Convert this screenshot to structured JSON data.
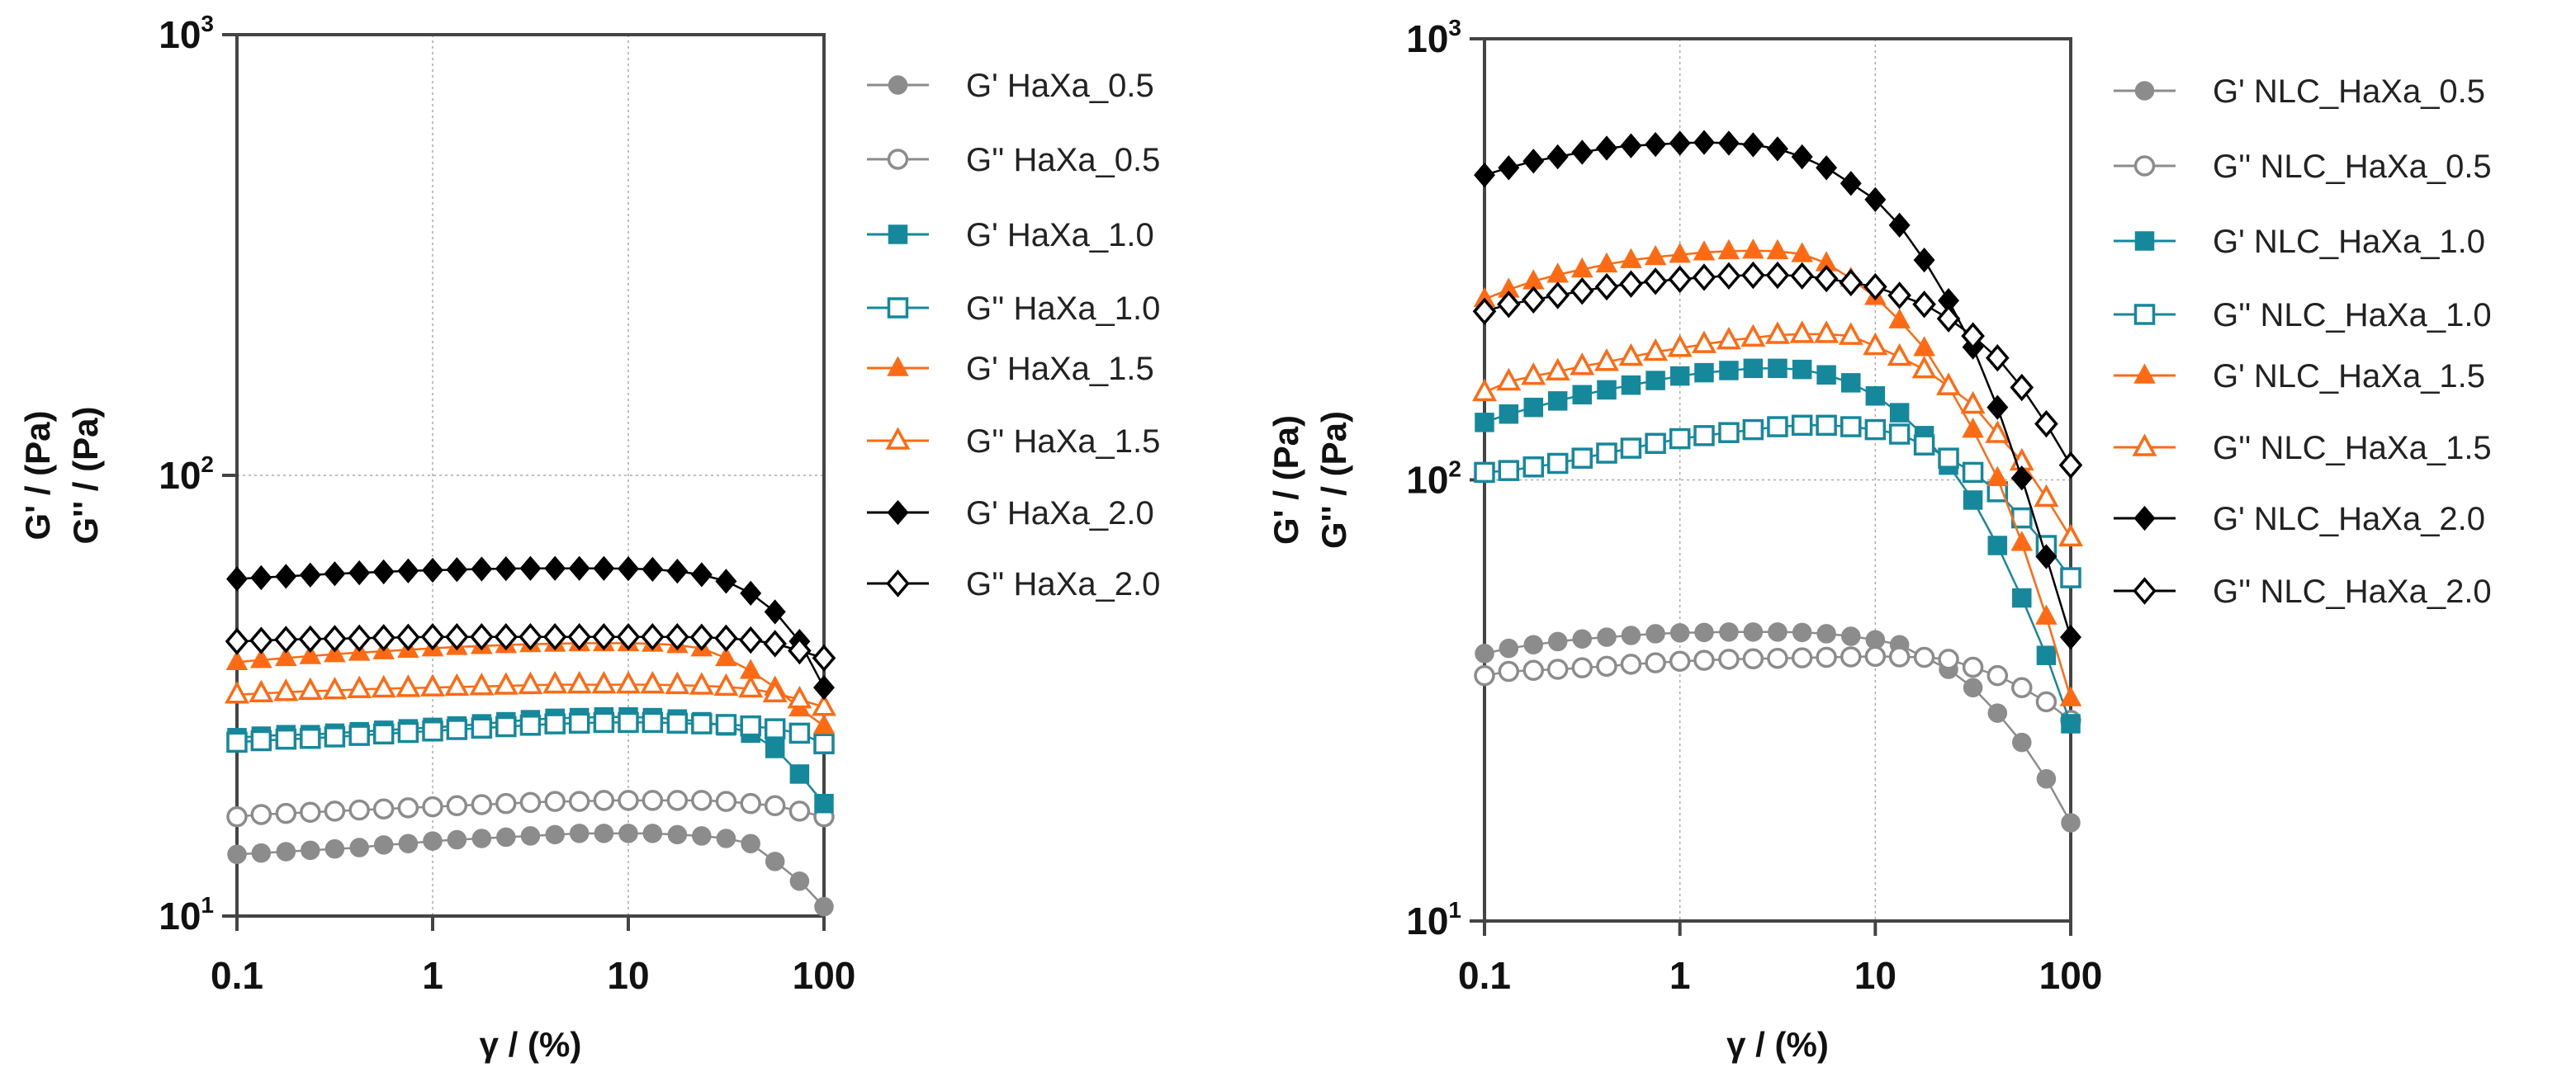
{
  "chart_data": [
    {
      "type": "line",
      "xscale": "log",
      "yscale": "log",
      "xlabel": "γ / (%)",
      "ylabel_lines": [
        "G' / (Pa)",
        "G'' / (Pa)"
      ],
      "xlim": [
        0.1,
        100
      ],
      "ylim": [
        10,
        1000
      ],
      "xticks": [
        "0.1",
        "1",
        "10",
        "100"
      ],
      "yticks": [
        {
          "base": "10",
          "exp": "1"
        },
        {
          "base": "10",
          "exp": "2"
        },
        {
          "base": "10",
          "exp": "3"
        }
      ],
      "grid": true,
      "legend_position": "right",
      "x": [
        0.1,
        0.133,
        0.178,
        0.237,
        0.316,
        0.422,
        0.562,
        0.75,
        1,
        1.33,
        1.78,
        2.37,
        3.16,
        4.22,
        5.62,
        7.5,
        10,
        13.3,
        17.8,
        23.7,
        31.6,
        42.2,
        56.2,
        75,
        100
      ],
      "series": [
        {
          "name": "G' HaXa_0.5",
          "color": "#8c8c8c",
          "marker": "circle",
          "filled": true,
          "values": [
            13.8,
            13.9,
            14.0,
            14.1,
            14.2,
            14.3,
            14.5,
            14.6,
            14.8,
            14.9,
            15.0,
            15.1,
            15.2,
            15.3,
            15.4,
            15.4,
            15.4,
            15.4,
            15.3,
            15.2,
            15.0,
            14.6,
            13.3,
            12.0,
            10.5
          ]
        },
        {
          "name": "G'' HaXa_0.5",
          "color": "#8c8c8c",
          "marker": "circle",
          "filled": false,
          "values": [
            16.8,
            17.0,
            17.1,
            17.2,
            17.3,
            17.4,
            17.5,
            17.6,
            17.7,
            17.8,
            17.9,
            18.0,
            18.1,
            18.2,
            18.2,
            18.3,
            18.3,
            18.3,
            18.3,
            18.3,
            18.2,
            18.0,
            17.8,
            17.3,
            16.8
          ]
        },
        {
          "name": "G' HaXa_1.0",
          "color": "#16889c",
          "marker": "square",
          "filled": true,
          "values": [
            25.4,
            25.6,
            25.8,
            25.8,
            26.0,
            26.2,
            26.4,
            26.6,
            26.8,
            27.0,
            27.3,
            27.6,
            27.9,
            28.1,
            28.2,
            28.3,
            28.3,
            28.2,
            28.0,
            27.6,
            27.0,
            26.0,
            24.0,
            21.0,
            18.0
          ]
        },
        {
          "name": "G'' HaXa_1.0",
          "color": "#16889c",
          "marker": "square",
          "filled": false,
          "values": [
            24.8,
            25.0,
            25.2,
            25.3,
            25.5,
            25.7,
            25.9,
            26.1,
            26.3,
            26.5,
            26.7,
            26.9,
            27.1,
            27.3,
            27.4,
            27.5,
            27.5,
            27.5,
            27.4,
            27.3,
            27.2,
            27.0,
            26.6,
            26.0,
            24.6
          ]
        },
        {
          "name": "G' HaXa_1.5",
          "color": "#ff6a13",
          "marker": "triangle",
          "filled": true,
          "values": [
            37.7,
            38.1,
            38.5,
            38.9,
            39.3,
            39.6,
            39.9,
            40.2,
            40.5,
            40.8,
            41.0,
            41.2,
            41.4,
            41.5,
            41.6,
            41.6,
            41.6,
            41.5,
            41.2,
            40.5,
            38.5,
            36.0,
            33.0,
            29.6,
            27.0
          ]
        },
        {
          "name": "G'' HaXa_1.5",
          "color": "#ff6a13",
          "marker": "triangle",
          "filled": false,
          "values": [
            31.8,
            32.0,
            32.2,
            32.4,
            32.5,
            32.7,
            32.8,
            32.9,
            33.0,
            33.1,
            33.2,
            33.3,
            33.4,
            33.5,
            33.5,
            33.5,
            33.5,
            33.5,
            33.4,
            33.3,
            33.1,
            32.8,
            32.0,
            31.0,
            29.8
          ]
        },
        {
          "name": "G' HaXa_2.0",
          "color": "#000000",
          "marker": "diamond",
          "filled": true,
          "values": [
            58.2,
            58.6,
            59.0,
            59.4,
            59.8,
            60.1,
            60.4,
            60.7,
            60.9,
            61.1,
            61.3,
            61.4,
            61.5,
            61.5,
            61.5,
            61.5,
            61.4,
            61.2,
            60.6,
            59.5,
            57.5,
            54.0,
            49.0,
            42.0,
            33.0
          ]
        },
        {
          "name": "G'' HaXa_2.0",
          "color": "#000000",
          "marker": "diamond",
          "filled": false,
          "values": [
            42.0,
            42.2,
            42.4,
            42.5,
            42.6,
            42.7,
            42.8,
            42.9,
            43,
            43,
            43,
            43,
            43,
            43,
            43,
            43,
            43,
            43,
            43,
            42.9,
            42.7,
            42.3,
            41.5,
            40.0,
            38.5
          ]
        }
      ]
    },
    {
      "type": "line",
      "xscale": "log",
      "yscale": "log",
      "xlabel": "γ / (%)",
      "ylabel_lines": [
        "G' / (Pa)",
        "G'' / (Pa)"
      ],
      "xlim": [
        0.1,
        100
      ],
      "ylim": [
        10,
        1000
      ],
      "xticks": [
        "0.1",
        "1",
        "10",
        "100"
      ],
      "yticks": [
        {
          "base": "10",
          "exp": "1"
        },
        {
          "base": "10",
          "exp": "2"
        },
        {
          "base": "10",
          "exp": "3"
        }
      ],
      "grid": true,
      "legend_position": "right",
      "x": [
        0.1,
        0.133,
        0.178,
        0.237,
        0.316,
        0.422,
        0.562,
        0.75,
        1,
        1.33,
        1.78,
        2.37,
        3.16,
        4.22,
        5.62,
        7.5,
        10,
        13.3,
        17.8,
        23.7,
        31.6,
        42.2,
        56.2,
        75,
        100
      ],
      "series": [
        {
          "name": "G' NLC_HaXa_0.5",
          "color": "#8c8c8c",
          "marker": "circle",
          "filled": true,
          "values": [
            40.4,
            41.5,
            42.3,
            43.0,
            43.6,
            44.0,
            44.4,
            44.8,
            45.0,
            45.1,
            45.2,
            45.2,
            45.2,
            45.1,
            44.8,
            44.2,
            43.4,
            42.3,
            39.6,
            37.2,
            33.8,
            29.6,
            25.4,
            21.0,
            16.7
          ]
        },
        {
          "name": "G'' NLC_HaXa_0.5",
          "color": "#8c8c8c",
          "marker": "circle",
          "filled": false,
          "values": [
            36.0,
            36.8,
            37.0,
            37.2,
            37.5,
            37.8,
            38.2,
            38.5,
            38.8,
            39.0,
            39.2,
            39.3,
            39.4,
            39.5,
            39.6,
            39.7,
            39.8,
            39.7,
            39.6,
            39.2,
            37.6,
            36.0,
            33.8,
            31.4,
            28.5
          ]
        },
        {
          "name": "G' NLC_HaXa_1.0",
          "color": "#16889c",
          "marker": "square",
          "filled": true,
          "values": [
            135,
            141,
            146,
            151,
            156,
            160,
            164,
            168,
            172,
            175,
            177,
            179,
            179,
            178,
            173,
            166,
            155,
            142,
            126,
            108,
            90,
            71,
            54,
            40,
            28
          ]
        },
        {
          "name": "G'' NLC_HaXa_1.0",
          "color": "#16889c",
          "marker": "square",
          "filled": false,
          "values": [
            104,
            105,
            107,
            109,
            112,
            115,
            118,
            121,
            124,
            126,
            128,
            130,
            132,
            133,
            133,
            132,
            130,
            127,
            120,
            112,
            104,
            94,
            82,
            71,
            60
          ]
        },
        {
          "name": "G' NLC_HaXa_1.5",
          "color": "#ff6a13",
          "marker": "triangle",
          "filled": true,
          "values": [
            257,
            270,
            282,
            292,
            300,
            308,
            315,
            320,
            324,
            328,
            330,
            331,
            330,
            325,
            310,
            286,
            260,
            230,
            199,
            163,
            130,
            101,
            72,
            49,
            32
          ]
        },
        {
          "name": "G'' NLC_HaXa_1.5",
          "color": "#ff6a13",
          "marker": "triangle",
          "filled": false,
          "values": [
            158,
            167,
            172,
            176,
            181,
            185,
            190,
            195,
            199,
            203,
            207,
            210,
            213,
            214,
            214,
            212,
            201,
            190,
            178,
            163,
            148,
            127,
            110,
            91,
            74
          ]
        },
        {
          "name": "G' NLC_HaXa_2.0",
          "color": "#000000",
          "marker": "diamond",
          "filled": true,
          "values": [
            491,
            510,
            528,
            540,
            553,
            565,
            572,
            576,
            580,
            582,
            580,
            575,
            563,
            540,
            510,
            470,
            432,
            378,
            315,
            255,
            200,
            146,
            101,
            67,
            44
          ]
        },
        {
          "name": "G'' NLC_HaXa_2.0",
          "color": "#000000",
          "marker": "diamond",
          "filled": false,
          "values": [
            241,
            250,
            256,
            262,
            268,
            274,
            278,
            282,
            285,
            288,
            290,
            291,
            291,
            290,
            286,
            280,
            274,
            262,
            250,
            232,
            212,
            189,
            162,
            134,
            108
          ]
        }
      ]
    }
  ]
}
